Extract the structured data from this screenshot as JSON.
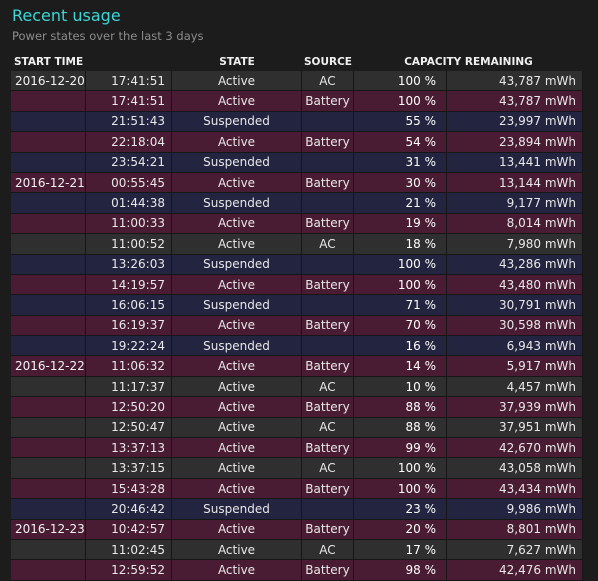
{
  "header": {
    "title": "Recent usage",
    "subtitle": "Power states over the last 3 days"
  },
  "columns": {
    "start_time": "START TIME",
    "state": "STATE",
    "source": "SOURCE",
    "capacity": "CAPACITY REMAINING"
  },
  "rows": [
    {
      "date": "2016-12-20",
      "time": "17:41:51",
      "state": "Active",
      "source": "AC",
      "percent": "100 %",
      "capacity": "43,787 mWh"
    },
    {
      "date": "",
      "time": "17:41:51",
      "state": "Active",
      "source": "Battery",
      "percent": "100 %",
      "capacity": "43,787 mWh"
    },
    {
      "date": "",
      "time": "21:51:43",
      "state": "Suspended",
      "source": "",
      "percent": "55 %",
      "capacity": "23,997 mWh"
    },
    {
      "date": "",
      "time": "22:18:04",
      "state": "Active",
      "source": "Battery",
      "percent": "54 %",
      "capacity": "23,894 mWh"
    },
    {
      "date": "",
      "time": "23:54:21",
      "state": "Suspended",
      "source": "",
      "percent": "31 %",
      "capacity": "13,441 mWh"
    },
    {
      "date": "2016-12-21",
      "time": "00:55:45",
      "state": "Active",
      "source": "Battery",
      "percent": "30 %",
      "capacity": "13,144 mWh"
    },
    {
      "date": "",
      "time": "01:44:38",
      "state": "Suspended",
      "source": "",
      "percent": "21 %",
      "capacity": "9,177 mWh"
    },
    {
      "date": "",
      "time": "11:00:33",
      "state": "Active",
      "source": "Battery",
      "percent": "19 %",
      "capacity": "8,014 mWh"
    },
    {
      "date": "",
      "time": "11:00:52",
      "state": "Active",
      "source": "AC",
      "percent": "18 %",
      "capacity": "7,980 mWh"
    },
    {
      "date": "",
      "time": "13:26:03",
      "state": "Suspended",
      "source": "",
      "percent": "100 %",
      "capacity": "43,286 mWh"
    },
    {
      "date": "",
      "time": "14:19:57",
      "state": "Active",
      "source": "Battery",
      "percent": "100 %",
      "capacity": "43,480 mWh"
    },
    {
      "date": "",
      "time": "16:06:15",
      "state": "Suspended",
      "source": "",
      "percent": "71 %",
      "capacity": "30,791 mWh"
    },
    {
      "date": "",
      "time": "16:19:37",
      "state": "Active",
      "source": "Battery",
      "percent": "70 %",
      "capacity": "30,598 mWh"
    },
    {
      "date": "",
      "time": "19:22:24",
      "state": "Suspended",
      "source": "",
      "percent": "16 %",
      "capacity": "6,943 mWh"
    },
    {
      "date": "2016-12-22",
      "time": "11:06:32",
      "state": "Active",
      "source": "Battery",
      "percent": "14 %",
      "capacity": "5,917 mWh"
    },
    {
      "date": "",
      "time": "11:17:37",
      "state": "Active",
      "source": "AC",
      "percent": "10 %",
      "capacity": "4,457 mWh"
    },
    {
      "date": "",
      "time": "12:50:20",
      "state": "Active",
      "source": "Battery",
      "percent": "88 %",
      "capacity": "37,939 mWh"
    },
    {
      "date": "",
      "time": "12:50:47",
      "state": "Active",
      "source": "AC",
      "percent": "88 %",
      "capacity": "37,951 mWh"
    },
    {
      "date": "",
      "time": "13:37:13",
      "state": "Active",
      "source": "Battery",
      "percent": "99 %",
      "capacity": "42,670 mWh"
    },
    {
      "date": "",
      "time": "13:37:15",
      "state": "Active",
      "source": "AC",
      "percent": "100 %",
      "capacity": "43,058 mWh"
    },
    {
      "date": "",
      "time": "15:43:28",
      "state": "Active",
      "source": "Battery",
      "percent": "100 %",
      "capacity": "43,434 mWh"
    },
    {
      "date": "",
      "time": "20:46:42",
      "state": "Suspended",
      "source": "",
      "percent": "23 %",
      "capacity": "9,986 mWh"
    },
    {
      "date": "2016-12-23",
      "time": "10:42:57",
      "state": "Active",
      "source": "Battery",
      "percent": "20 %",
      "capacity": "8,801 mWh"
    },
    {
      "date": "",
      "time": "11:02:45",
      "state": "Active",
      "source": "AC",
      "percent": "17 %",
      "capacity": "7,627 mWh"
    },
    {
      "date": "",
      "time": "12:59:52",
      "state": "Active",
      "source": "Battery",
      "percent": "98 %",
      "capacity": "42,476 mWh"
    }
  ],
  "colors": {
    "accent": "#3cd6d6",
    "active_battery": "#4a1c34",
    "active_ac": "#2f2f2f",
    "suspended": "#222440"
  }
}
